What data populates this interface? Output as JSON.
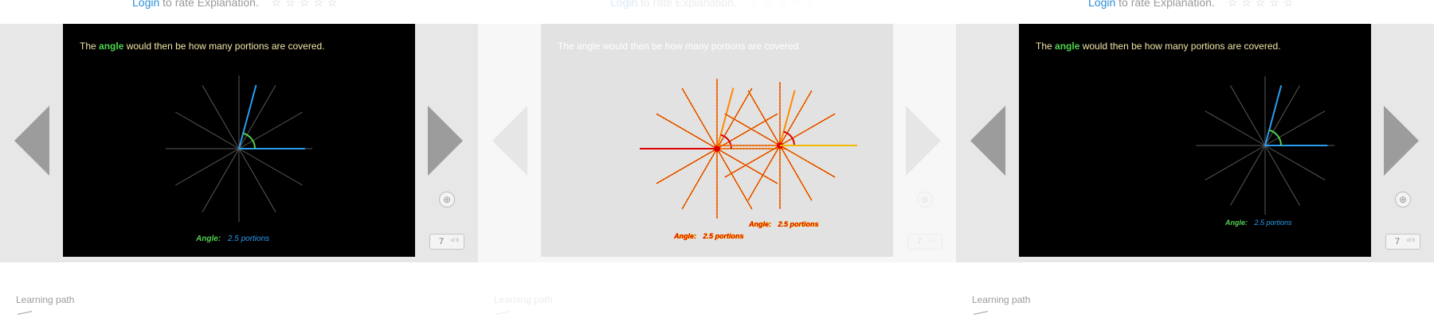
{
  "rate": {
    "login_label": "Login",
    "rate_text": "to rate Explanation.",
    "stars": "☆☆☆☆☆"
  },
  "slide": {
    "text_before": "The",
    "highlight": "angle",
    "text_after": "would then be how many portions are covered.",
    "angle_label": "Angle:",
    "angle_value": "2.5 portions"
  },
  "pager": {
    "current": "7",
    "total": "of 8"
  },
  "learning_path_label": "Learning path",
  "icons": {
    "prev": "chevron-left-icon",
    "next": "chevron-right-icon",
    "zoom": "zoom-icon"
  },
  "colors": {
    "highlight": "#4fd34f",
    "angle_ray": "#2a9df0",
    "arc": "#4fd34f",
    "arrow": "#9c9c9c",
    "link": "#2a8fd6"
  }
}
